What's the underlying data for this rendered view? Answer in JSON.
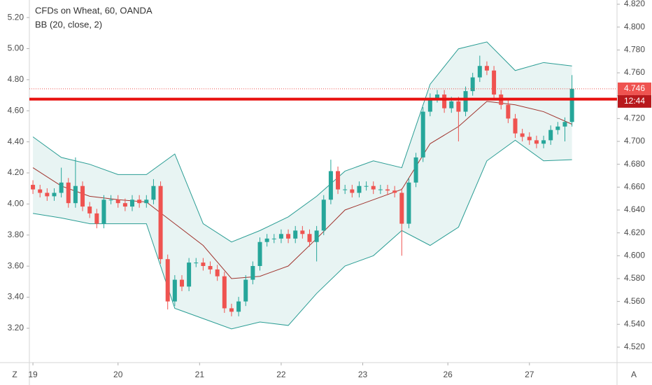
{
  "chart_data": {
    "type": "candlestick",
    "title": "CFDs on Wheat, 60, OANDA",
    "indicator": "BB (20, close, 2)",
    "up_color": "#26a69a",
    "down_color": "#ef5350",
    "grid": false,
    "x": [
      0,
      2,
      4,
      6,
      8,
      10,
      12,
      14,
      16,
      18,
      20,
      22,
      24,
      26,
      28,
      30,
      32,
      34,
      36,
      38,
      40,
      42,
      44,
      46,
      48,
      50,
      52,
      54,
      56,
      58,
      60,
      62,
      64,
      66,
      68,
      70,
      72,
      74,
      76,
      78,
      80,
      82,
      84,
      86,
      88,
      90,
      92,
      94,
      96,
      98,
      100,
      102,
      104,
      106,
      108,
      110,
      112,
      114,
      116,
      118,
      120,
      122,
      124,
      126,
      128,
      130,
      132,
      134,
      136,
      138,
      140,
      142,
      144,
      146,
      148,
      150,
      152
    ],
    "open": [
      4.662,
      4.658,
      4.655,
      4.652,
      4.655,
      4.664,
      4.646,
      4.661,
      4.643,
      4.637,
      4.628,
      4.649,
      4.649,
      4.646,
      4.643,
      4.649,
      4.646,
      4.649,
      4.661,
      4.597,
      4.56,
      4.579,
      4.573,
      4.594,
      4.594,
      4.591,
      4.588,
      4.582,
      4.554,
      4.551,
      4.56,
      4.579,
      4.591,
      4.612,
      4.615,
      4.615,
      4.619,
      4.615,
      4.622,
      4.619,
      4.612,
      4.622,
      4.649,
      4.674,
      4.658,
      4.658,
      4.655,
      4.661,
      4.661,
      4.658,
      4.658,
      4.657,
      4.655,
      4.628,
      4.664,
      4.686,
      4.726,
      4.738,
      4.741,
      4.729,
      4.735,
      4.726,
      4.744,
      4.756,
      4.766,
      4.762,
      4.741,
      4.732,
      4.72,
      4.707,
      4.704,
      4.701,
      4.698,
      4.701,
      4.71,
      4.713,
      4.717
    ],
    "high": [
      4.666,
      4.662,
      4.659,
      4.659,
      4.677,
      4.668,
      4.686,
      4.665,
      4.647,
      4.641,
      4.653,
      4.653,
      4.653,
      4.65,
      4.653,
      4.653,
      4.653,
      4.667,
      4.665,
      4.601,
      4.583,
      4.583,
      4.598,
      4.598,
      4.598,
      4.595,
      4.592,
      4.586,
      4.558,
      4.564,
      4.583,
      4.595,
      4.616,
      4.619,
      4.619,
      4.623,
      4.623,
      4.626,
      4.626,
      4.623,
      4.626,
      4.653,
      4.684,
      4.678,
      4.662,
      4.662,
      4.665,
      4.665,
      4.665,
      4.662,
      4.662,
      4.661,
      4.659,
      4.668,
      4.69,
      4.73,
      4.742,
      4.745,
      4.745,
      4.739,
      4.739,
      4.748,
      4.76,
      4.775,
      4.77,
      4.766,
      4.745,
      4.736,
      4.724,
      4.711,
      4.708,
      4.705,
      4.705,
      4.714,
      4.717,
      4.721,
      4.758
    ],
    "low": [
      4.654,
      4.651,
      4.648,
      4.648,
      4.651,
      4.642,
      4.642,
      4.639,
      4.633,
      4.624,
      4.624,
      4.645,
      4.642,
      4.639,
      4.639,
      4.642,
      4.642,
      4.645,
      4.593,
      4.553,
      4.556,
      4.569,
      4.569,
      4.59,
      4.587,
      4.584,
      4.578,
      4.55,
      4.547,
      4.547,
      4.556,
      4.575,
      4.587,
      4.608,
      4.611,
      4.611,
      4.611,
      4.611,
      4.615,
      4.608,
      4.595,
      4.618,
      4.645,
      4.654,
      4.654,
      4.651,
      4.651,
      4.657,
      4.654,
      4.654,
      4.653,
      4.651,
      4.6,
      4.624,
      4.66,
      4.682,
      4.722,
      4.734,
      4.725,
      4.725,
      4.7,
      4.722,
      4.74,
      4.752,
      4.758,
      4.737,
      4.728,
      4.716,
      4.703,
      4.7,
      4.697,
      4.694,
      4.694,
      4.697,
      4.706,
      4.7,
      4.713
    ],
    "close": [
      4.658,
      4.655,
      4.652,
      4.655,
      4.664,
      4.646,
      4.661,
      4.643,
      4.637,
      4.628,
      4.649,
      4.649,
      4.646,
      4.643,
      4.649,
      4.646,
      4.649,
      4.661,
      4.597,
      4.56,
      4.579,
      4.573,
      4.594,
      4.594,
      4.591,
      4.588,
      4.582,
      4.554,
      4.551,
      4.56,
      4.579,
      4.591,
      4.612,
      4.615,
      4.615,
      4.619,
      4.615,
      4.622,
      4.619,
      4.612,
      4.622,
      4.649,
      4.674,
      4.658,
      4.658,
      4.655,
      4.661,
      4.661,
      4.658,
      4.658,
      4.657,
      4.655,
      4.628,
      4.664,
      4.686,
      4.726,
      4.738,
      4.741,
      4.729,
      4.735,
      4.726,
      4.744,
      4.756,
      4.766,
      4.762,
      4.741,
      4.732,
      4.72,
      4.707,
      4.704,
      4.701,
      4.698,
      4.701,
      4.71,
      4.713,
      4.717,
      4.746
    ],
    "bands": {
      "x": [
        0,
        8,
        16,
        24,
        32,
        40,
        48,
        56,
        64,
        72,
        80,
        88,
        96,
        104,
        112,
        120,
        128,
        136,
        144,
        152
      ],
      "fill": "#e8f4f3",
      "series": [
        {
          "color": "#2a9d94",
          "values": [
            4.704,
            4.686,
            4.68,
            4.671,
            4.671,
            4.689,
            4.628,
            4.612,
            4.622,
            4.634,
            4.652,
            4.674,
            4.683,
            4.677,
            4.75,
            4.781,
            4.787,
            4.762,
            4.769,
            4.766
          ]
        },
        {
          "color": "#a0342e",
          "values": [
            4.677,
            4.661,
            4.652,
            4.649,
            4.647,
            4.628,
            4.609,
            4.58,
            4.582,
            4.591,
            4.615,
            4.64,
            4.649,
            4.658,
            4.698,
            4.713,
            4.735,
            4.732,
            4.726,
            4.715
          ]
        },
        {
          "color": "#2a9d94",
          "values": [
            4.637,
            4.633,
            4.628,
            4.628,
            4.628,
            4.554,
            4.545,
            4.536,
            4.542,
            4.539,
            4.567,
            4.591,
            4.6,
            4.622,
            4.609,
            4.625,
            4.683,
            4.701,
            4.683,
            4.684
          ]
        }
      ]
    },
    "horizontal_line": {
      "value": 4.737,
      "color": "#e8110f"
    },
    "last_price": 4.746,
    "last_price_color": "#ef5350",
    "countdown": "12:44",
    "countdown_color": "#b8191d",
    "xlim": [
      -1,
      164.7
    ],
    "xticks": [
      {
        "value": 0,
        "label": "19"
      },
      {
        "value": 24,
        "label": "20"
      },
      {
        "value": 47,
        "label": "21"
      },
      {
        "value": 70,
        "label": "22"
      },
      {
        "value": 93,
        "label": "23"
      },
      {
        "value": 117,
        "label": "26"
      },
      {
        "value": 140,
        "label": "27"
      }
    ],
    "ylim": [
      4.5065,
      4.8237
    ],
    "yticks": [
      {
        "value": 4.52,
        "label": "4.520"
      },
      {
        "value": 4.54,
        "label": "4.540"
      },
      {
        "value": 4.56,
        "label": "4.560"
      },
      {
        "value": 4.58,
        "label": "4.580"
      },
      {
        "value": 4.6,
        "label": "4.600"
      },
      {
        "value": 4.62,
        "label": "4.620"
      },
      {
        "value": 4.64,
        "label": "4.640"
      },
      {
        "value": 4.66,
        "label": "4.660"
      },
      {
        "value": 4.68,
        "label": "4.680"
      },
      {
        "value": 4.7,
        "label": "4.700"
      },
      {
        "value": 4.72,
        "label": "4.720"
      },
      {
        "value": 4.74,
        "label": "4.740"
      },
      {
        "value": 4.76,
        "label": "4.760"
      },
      {
        "value": 4.78,
        "label": "4.780"
      },
      {
        "value": 4.8,
        "label": "4.800"
      },
      {
        "value": 4.82,
        "label": "4.820"
      }
    ],
    "y2lim": [
      2.979,
      5.313
    ],
    "y2ticks": [
      {
        "value": 3.2,
        "label": "3.20"
      },
      {
        "value": 3.4,
        "label": "3.40"
      },
      {
        "value": 3.6,
        "label": "3.60"
      },
      {
        "value": 3.8,
        "label": "3.80"
      },
      {
        "value": 4.0,
        "label": "4.00"
      },
      {
        "value": 4.2,
        "label": "4.20"
      },
      {
        "value": 4.4,
        "label": "4.40"
      },
      {
        "value": 4.6,
        "label": "4.60"
      },
      {
        "value": 4.8,
        "label": "4.80"
      },
      {
        "value": 5.0,
        "label": "5.00"
      },
      {
        "value": 5.2,
        "label": "5.20"
      }
    ],
    "scale_buttons": [
      "Z",
      "A"
    ]
  }
}
